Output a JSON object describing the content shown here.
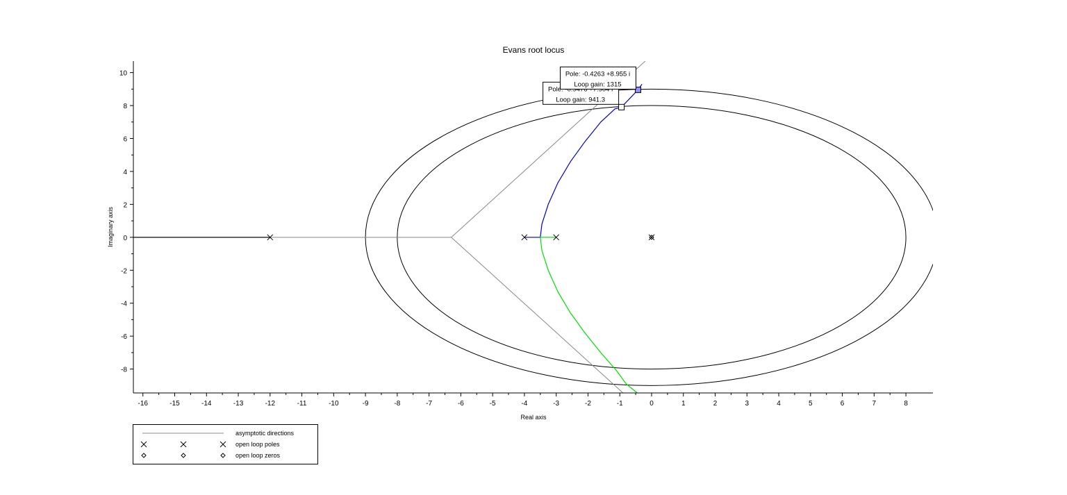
{
  "chart_data": {
    "type": "line",
    "title": "Evans root locus",
    "xlabel": "Real axis",
    "ylabel": "Imaginary axis",
    "xlim": [
      -16.3,
      8.85
    ],
    "ylim": [
      -9.45,
      10.7
    ],
    "xticks": [
      -16,
      -15,
      -14,
      -13,
      -12,
      -11,
      -10,
      -9,
      -8,
      -7,
      -6,
      -5,
      -4,
      -3,
      -2,
      -1,
      0,
      1,
      2,
      3,
      4,
      5,
      6,
      7,
      8
    ],
    "yticks": [
      -8,
      -6,
      -4,
      -2,
      0,
      2,
      4,
      6,
      8,
      10
    ],
    "grid": false,
    "legend_position": "bottom-left",
    "legend": [
      {
        "label": "asymptotic directions",
        "kind": "line"
      },
      {
        "label": "open loop poles",
        "kind": "x"
      },
      {
        "label": "open loop zeros",
        "kind": "diamond"
      }
    ],
    "open_loop_poles": [
      [
        -12,
        0
      ],
      [
        -4,
        0
      ],
      [
        -3,
        0
      ],
      [
        0,
        0
      ]
    ],
    "open_loop_zeros": [
      [
        0,
        0
      ]
    ],
    "asymptote_center": [
      -6.3,
      0
    ],
    "asymptotes": [
      {
        "from": [
          -6.3,
          0
        ],
        "to": [
          -16.3,
          0
        ]
      },
      {
        "from": [
          -6.3,
          0
        ],
        "to": [
          -0.2,
          10.7
        ]
      },
      {
        "from": [
          -6.3,
          0
        ],
        "to": [
          -0.9,
          -9.45
        ]
      }
    ],
    "series": [
      {
        "color": "#000000",
        "points": [
          [
            -16.3,
            0
          ],
          [
            -12,
            0
          ]
        ]
      },
      {
        "color": "#0000cc",
        "points": [
          [
            -4,
            0
          ],
          [
            -3.5,
            0
          ],
          [
            -3.45,
            0.8
          ],
          [
            -3.25,
            2
          ],
          [
            -2.95,
            3.3
          ],
          [
            -2.55,
            4.6
          ],
          [
            -2.1,
            5.8
          ],
          [
            -1.6,
            7.0
          ],
          [
            -1.15,
            7.8
          ],
          [
            -0.95,
            7.9
          ],
          [
            -0.43,
            8.95
          ],
          [
            -0.3,
            9.3
          ]
        ]
      },
      {
        "color": "#00dd00",
        "points": [
          [
            -3,
            0
          ],
          [
            -3.5,
            0
          ],
          [
            -3.45,
            -0.8
          ],
          [
            -3.25,
            -2
          ],
          [
            -2.95,
            -3.3
          ],
          [
            -2.55,
            -4.6
          ],
          [
            -2.1,
            -5.8
          ],
          [
            -1.6,
            -7.0
          ],
          [
            -1.1,
            -8.1
          ],
          [
            -0.8,
            -8.9
          ],
          [
            -0.45,
            -9.45
          ]
        ]
      }
    ],
    "ellipses": [
      {
        "cx": 0,
        "cy": 0,
        "rx": 8,
        "ry": 8
      },
      {
        "cx": 0,
        "cy": 0,
        "rx": 9,
        "ry": 9
      }
    ],
    "datatips": [
      {
        "point": [
          -0.4263,
          8.955
        ],
        "lines": [
          "Pole: -0.4263 +8.955 i",
          "Loop gain: 1315"
        ]
      },
      {
        "point": [
          -0.9476,
          7.904
        ],
        "lines": [
          "Pole: -0.9476 +7.904 i",
          "Loop gain: 941.3"
        ]
      }
    ]
  }
}
